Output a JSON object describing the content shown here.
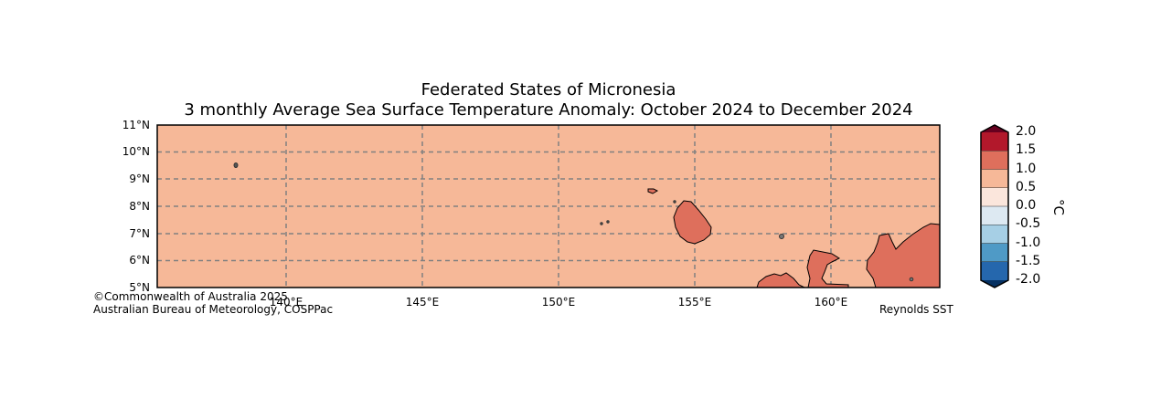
{
  "title": {
    "line1": "Federated States of Micronesia",
    "line2": "3 monthly Average Sea Surface Temperature Anomaly: October 2024 to December 2024"
  },
  "axes": {
    "lat_ticks": [
      "11°N",
      "10°N",
      "9°N",
      "8°N",
      "7°N",
      "6°N",
      "5°N"
    ],
    "lon_ticks": [
      "140°E",
      "145°E",
      "150°E",
      "155°E",
      "160°E"
    ],
    "lat_range": [
      5,
      11
    ],
    "lon_range": [
      135.25,
      164
    ]
  },
  "colorbar": {
    "labels": [
      "2.0",
      "1.5",
      "1.0",
      "0.5",
      "0.0",
      "-0.5",
      "-1.0",
      "-1.5",
      "-2.0"
    ],
    "unit": "°C",
    "colors": [
      "#b2182b",
      "#de6f5c",
      "#f6b898",
      "#fbe6dc",
      "#dde9f2",
      "#a6cfe5",
      "#4f9ac6",
      "#2567ad"
    ],
    "extend_top": "#67001f",
    "extend_bottom": "#053061"
  },
  "map": {
    "background_anomaly_color": "#f6b898",
    "warm_anomaly_color": "#de6f5c",
    "gridline_color": "#808080"
  },
  "footer": {
    "copyright": "©Commonwealth of Australia 2025",
    "bureau": "Australian Bureau of Meteorology, COSPPac",
    "source": "Reynolds SST"
  }
}
